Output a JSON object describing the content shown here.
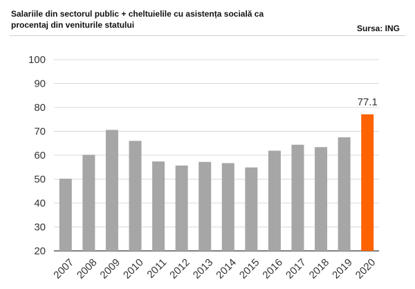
{
  "header": {
    "title": "Salariile din sectorul public + cheltuielile cu asistența socială ca procentaj din veniturile statului",
    "source": "Sursa: ING"
  },
  "colors": {
    "bar": "#a6a6a6",
    "highlight": "#ff6200",
    "grid": "#d9d9d9",
    "axis": "#333333"
  },
  "chart_data": {
    "type": "bar",
    "title": "Salariile din sectorul public + cheltuielile cu asistența socială ca procentaj din veniturile statului",
    "xlabel": "",
    "ylabel": "",
    "categories": [
      "2007",
      "2008",
      "2009",
      "2010",
      "2011",
      "2012",
      "2013",
      "2014",
      "2015",
      "2016",
      "2017",
      "2018",
      "2019",
      "2020"
    ],
    "values": [
      50.2,
      60.2,
      70.6,
      66.0,
      57.4,
      55.7,
      57.2,
      56.7,
      54.9,
      61.9,
      64.4,
      63.4,
      67.5,
      77.1
    ],
    "highlighted_category": "2020",
    "data_labels": [
      {
        "category": "2020",
        "text": "77.1"
      }
    ],
    "ylim": [
      20,
      100
    ],
    "yticks": [
      20,
      30,
      40,
      50,
      60,
      70,
      80,
      90,
      100
    ],
    "grid": true,
    "legend": "none"
  }
}
